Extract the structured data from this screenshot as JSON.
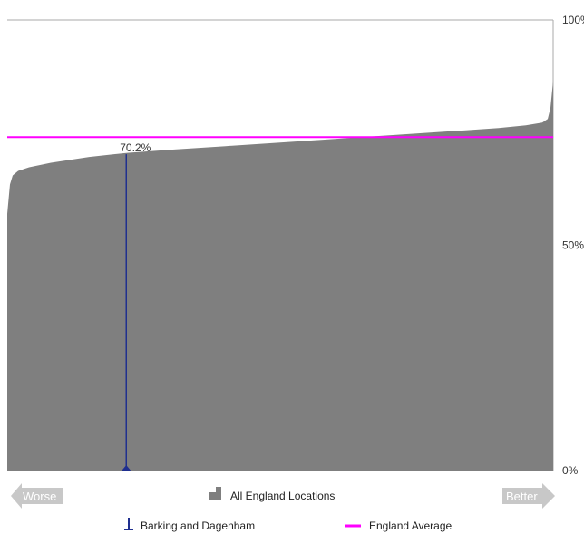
{
  "chart_data": {
    "type": "area",
    "ylim": [
      0,
      100
    ],
    "y_ticks": [
      "0%",
      "50%",
      "100%"
    ],
    "distribution_series": {
      "name": "All England Locations",
      "color": "#7f7f7f",
      "x_fraction": [
        0,
        0.005,
        0.01,
        0.02,
        0.04,
        0.08,
        0.15,
        0.22,
        0.3,
        0.4,
        0.5,
        0.6,
        0.7,
        0.8,
        0.9,
        0.95,
        0.98,
        0.99,
        0.995,
        1
      ],
      "values": [
        57,
        63.5,
        65.5,
        66.5,
        67.3,
        68.3,
        69.6,
        70.5,
        71.2,
        72.0,
        72.8,
        73.6,
        74.4,
        75.2,
        76.0,
        76.6,
        77.2,
        78.0,
        80.5,
        86.5
      ]
    },
    "highlight": {
      "name": "Barking and Dagenham",
      "label": "70.2%",
      "value": 70.2,
      "x_fraction": 0.218,
      "color": "#1f2f8f"
    },
    "reference_line": {
      "name": "England Average",
      "value": 74.0,
      "color": "#ff00ff"
    },
    "direction_labels": {
      "left": "Worse",
      "right": "Better"
    },
    "arrow_color": "#c8c8c8"
  }
}
